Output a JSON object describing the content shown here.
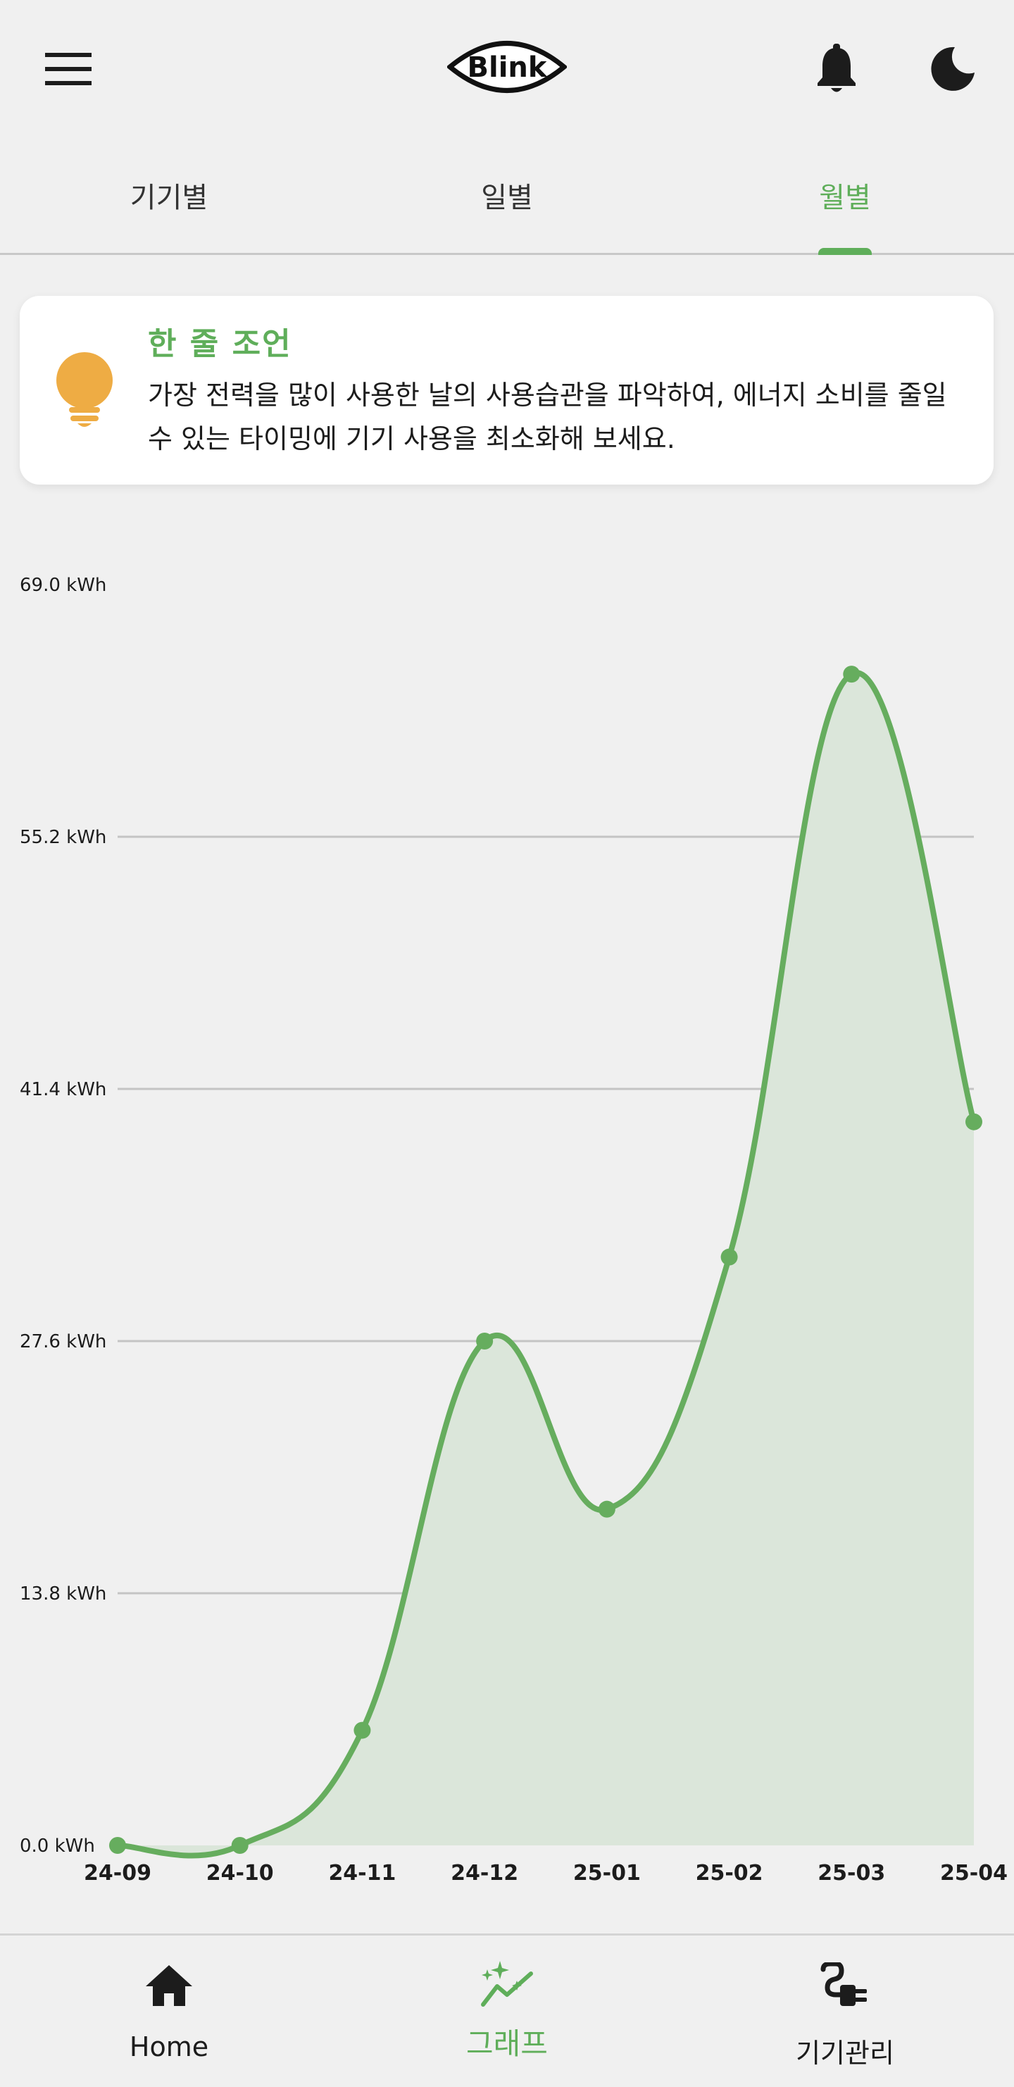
{
  "header": {
    "logo_text": "Blink",
    "menu_icon": "menu-icon",
    "notification_icon": "bell-icon",
    "theme_icon": "moon-icon"
  },
  "tabs": [
    {
      "label": "기기별",
      "active": false
    },
    {
      "label": "일별",
      "active": false
    },
    {
      "label": "월별",
      "active": true
    }
  ],
  "tip": {
    "icon": "lightbulb-icon",
    "title": "한 줄 조언",
    "body": "가장 전력을 많이 사용한 날의 사용습관을 파악하여, 에너지 소비를 줄일 수 있는 타이밍에 기기 사용을 최소화해 보세요."
  },
  "chart_data": {
    "type": "area",
    "categories": [
      "24-09",
      "24-10",
      "24-11",
      "24-12",
      "25-01",
      "25-02",
      "25-03",
      "25-04"
    ],
    "series": [
      {
        "values": [
          0.0,
          0.0,
          6.3,
          27.6,
          18.4,
          32.2,
          64.1,
          39.6
        ]
      }
    ],
    "yticks": [
      "0.0 kWh",
      "13.8 kWh",
      "27.6 kWh",
      "41.4 kWh",
      "55.2 kWh",
      "69.0 kWh"
    ],
    "ylim": [
      0,
      69.0
    ],
    "grid": true,
    "colors": {
      "line": "#66ad5e",
      "fill": "#dbe6da",
      "grid": "#c4c4c4"
    }
  },
  "bottom_nav": [
    {
      "label": "Home",
      "icon": "home-icon",
      "active": false
    },
    {
      "label": "그래프",
      "icon": "chart-sparkle-icon",
      "active": true
    },
    {
      "label": "기기관리",
      "icon": "plug-icon",
      "active": false
    }
  ],
  "colors": {
    "accent": "#5fae5a",
    "bulb": "#eeac44",
    "background": "#f0f0f0"
  }
}
